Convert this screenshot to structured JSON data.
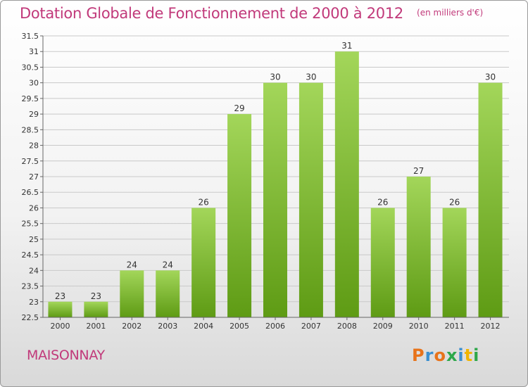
{
  "header": {
    "title": "Dotation Globale de Fonctionnement de 2000 à 2012",
    "unit": "(en milliers d'€)"
  },
  "footer": {
    "commune": "MAISONNAY",
    "logo": {
      "text": "Proxiti",
      "colors": [
        "#e8731a",
        "#3a8fd0",
        "#e8731a",
        "#2ea84a",
        "#3a8fd0",
        "#f0b400",
        "#2ea84a"
      ]
    }
  },
  "colors": {
    "accent": "#c1397a",
    "bar_light": "#a3d65a",
    "bar_dark": "#5e9b14",
    "grid": "#c9c9c9"
  },
  "chart_data": {
    "type": "bar",
    "categories": [
      "2000",
      "2001",
      "2002",
      "2003",
      "2004",
      "2005",
      "2006",
      "2007",
      "2008",
      "2009",
      "2010",
      "2011",
      "2012"
    ],
    "values": [
      23,
      23,
      24,
      24,
      26,
      29,
      30,
      30,
      31,
      26,
      27,
      26,
      30
    ],
    "data_labels": [
      "23",
      "23",
      "24",
      "24",
      "26",
      "29",
      "30",
      "30",
      "31",
      "26",
      "27",
      "26",
      "30"
    ],
    "ylim": [
      22.5,
      31.5
    ],
    "yticks": [
      22.5,
      23,
      23.5,
      24,
      24.5,
      25,
      25.5,
      26,
      26.5,
      27,
      27.5,
      28,
      28.5,
      29,
      29.5,
      30,
      30.5,
      31,
      31.5
    ],
    "grid": true
  }
}
